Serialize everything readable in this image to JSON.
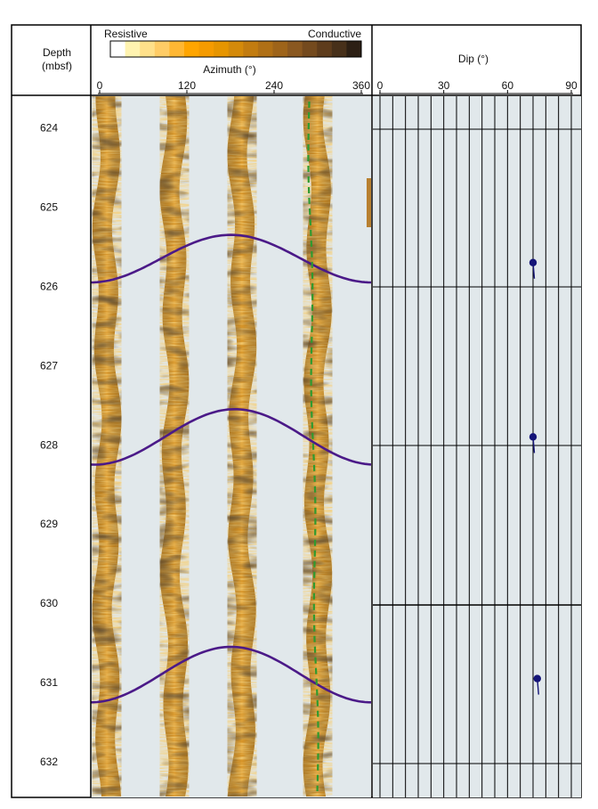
{
  "chart_data": {
    "type": "scatter",
    "header": {
      "depth_label_line1": "Depth",
      "depth_label_line2": "(mbsf)",
      "scale_left_label": "Resistive",
      "scale_right_label": "Conductive",
      "azimuth_label": "Azimuth (°)",
      "dip_label": "Dip (°)"
    },
    "azimuth_axis": {
      "range": [
        0,
        360
      ],
      "ticks": [
        "0",
        "120",
        "240",
        "360"
      ]
    },
    "dip_axis": {
      "range": [
        0,
        90
      ],
      "ticks": [
        "0",
        "30",
        "60",
        "90"
      ]
    },
    "depth_axis": {
      "range": [
        623.6,
        632.45
      ],
      "ticks": [
        "624",
        "625",
        "626",
        "627",
        "628",
        "629",
        "630",
        "631",
        "632"
      ]
    },
    "color_scale": [
      "#ffffff",
      "#fff3b0",
      "#ffe08a",
      "#ffcc66",
      "#ffb733",
      "#ffa500",
      "#f59b00",
      "#e69500",
      "#d48a0a",
      "#c27c10",
      "#b07016",
      "#9e641a",
      "#8a5820",
      "#744a1e",
      "#5e3c1c",
      "#47301a",
      "#2c1f14"
    ],
    "image_track_bg": "#e1e8eb",
    "dip_track_bg": "#e1e8eb",
    "sinusoid_color": "#4b1a88",
    "orientation_line_color": "#2f9a2f",
    "dip_marker_color": "#141478",
    "fractures": [
      {
        "depth_top": 625.35,
        "depth_bottom": 625.95,
        "dip": 72,
        "dip_azimuth": 165
      },
      {
        "depth_top": 627.55,
        "depth_bottom": 628.25,
        "dip": 72,
        "dip_azimuth": 170
      },
      {
        "depth_top": 630.55,
        "depth_bottom": 631.25,
        "dip": 74,
        "dip_azimuth": 165
      }
    ],
    "dip_tadpoles": [
      {
        "depth": 625.7,
        "dip": 72
      },
      {
        "depth": 627.9,
        "dip": 72
      },
      {
        "depth": 630.95,
        "dip": 74
      }
    ]
  }
}
